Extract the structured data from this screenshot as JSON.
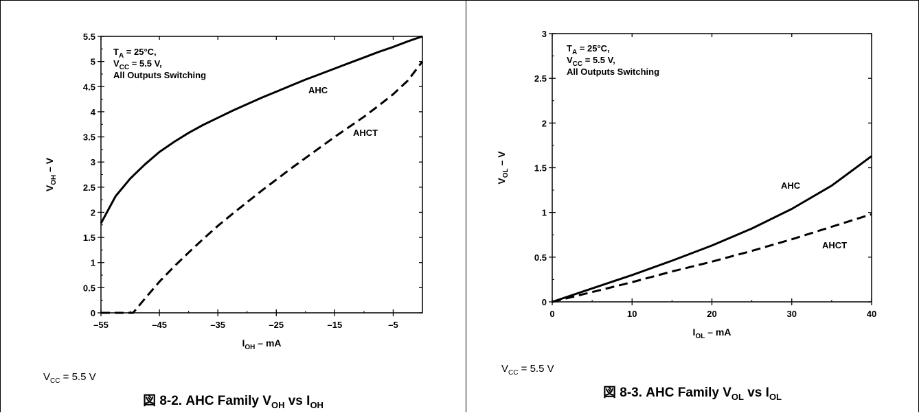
{
  "chart_data": [
    {
      "type": "line",
      "title": "",
      "xlabel_main": "I",
      "xlabel_sub": "OH",
      "xlabel_rest": " – mA",
      "ylabel_main": "V",
      "ylabel_sub": "OH",
      "ylabel_rest": " – V",
      "xlim": [
        -55,
        0
      ],
      "ylim": [
        0,
        5.5
      ],
      "xticks": [
        -55,
        -45,
        -35,
        -25,
        -15,
        -5
      ],
      "xtick_labels": [
        "–55",
        "–45",
        "–35",
        "–25",
        "–15",
        "–5"
      ],
      "yticks": [
        0,
        0.5,
        1,
        1.5,
        2,
        2.5,
        3,
        3.5,
        4,
        4.5,
        5,
        5.5
      ],
      "ytick_labels": [
        "0",
        "0.5",
        "1",
        "1.5",
        "2",
        "2.5",
        "3",
        "3.5",
        "4",
        "4.5",
        "5",
        "5.5"
      ],
      "annotation": [
        {
          "main": "T",
          "sub": "A",
          "rest": " = 25°C,"
        },
        {
          "main": "V",
          "sub": "CC",
          "rest": " = 5.5 V,"
        },
        {
          "main": "All Outputs Switching",
          "sub": "",
          "rest": ""
        }
      ],
      "series": [
        {
          "name": "AHC",
          "style": "solid",
          "x": [
            -55,
            -52.5,
            -50,
            -47.5,
            -45,
            -42.5,
            -40,
            -37.5,
            -35,
            -32.5,
            -30,
            -27.5,
            -25,
            -22.5,
            -20,
            -17.5,
            -15,
            -12.5,
            -10,
            -7.5,
            -5,
            -2.5,
            0
          ],
          "y": [
            1.78,
            2.32,
            2.67,
            2.95,
            3.2,
            3.4,
            3.58,
            3.74,
            3.88,
            4.02,
            4.15,
            4.28,
            4.4,
            4.52,
            4.64,
            4.75,
            4.86,
            4.97,
            5.08,
            5.19,
            5.29,
            5.4,
            5.5
          ]
        },
        {
          "name": "AHCT",
          "style": "dashed",
          "x": [
            -55,
            -51,
            -49.5,
            -47.5,
            -45,
            -42.5,
            -40,
            -37.5,
            -35,
            -32.5,
            -30,
            -27.5,
            -25,
            -22.5,
            -20,
            -17.5,
            -15,
            -12.5,
            -10,
            -7.5,
            -5,
            -2.5,
            0
          ],
          "y": [
            0,
            0,
            0,
            0.28,
            0.62,
            0.92,
            1.2,
            1.47,
            1.73,
            1.97,
            2.2,
            2.43,
            2.65,
            2.87,
            3.08,
            3.29,
            3.5,
            3.7,
            3.9,
            4.12,
            4.35,
            4.62,
            5.0
          ]
        }
      ],
      "note": {
        "main": "V",
        "sub": "CC",
        "rest": " = 5.5 V"
      },
      "caption": {
        "prefix": "図 8-2. AHC Family V",
        "sub1": "OH",
        "mid": " vs I",
        "sub2": "OH"
      }
    },
    {
      "type": "line",
      "title": "",
      "xlabel_main": "I",
      "xlabel_sub": "OL",
      "xlabel_rest": " – mA",
      "ylabel_main": "V",
      "ylabel_sub": "OL",
      "ylabel_rest": " – V",
      "xlim": [
        0,
        40
      ],
      "ylim": [
        0,
        3
      ],
      "xticks": [
        0,
        10,
        20,
        30,
        40
      ],
      "xtick_labels": [
        "0",
        "10",
        "20",
        "30",
        "40"
      ],
      "yticks": [
        0,
        0.5,
        1,
        1.5,
        2,
        2.5,
        3
      ],
      "ytick_labels": [
        "0",
        "0.5",
        "1",
        "1.5",
        "2",
        "2.5",
        "3"
      ],
      "annotation": [
        {
          "main": "T",
          "sub": "A",
          "rest": " = 25°C,"
        },
        {
          "main": "V",
          "sub": "CC",
          "rest": " = 5.5 V,"
        },
        {
          "main": "All Outputs Switching",
          "sub": "",
          "rest": ""
        }
      ],
      "series": [
        {
          "name": "AHC",
          "style": "solid",
          "x": [
            0,
            5,
            10,
            15,
            20,
            25,
            30,
            35,
            40
          ],
          "y": [
            0,
            0.15,
            0.3,
            0.46,
            0.63,
            0.82,
            1.04,
            1.3,
            1.63
          ]
        },
        {
          "name": "AHCT",
          "style": "dashed",
          "x": [
            0,
            5,
            10,
            15,
            20,
            25,
            30,
            35,
            40
          ],
          "y": [
            0,
            0.11,
            0.22,
            0.34,
            0.45,
            0.57,
            0.7,
            0.84,
            0.98
          ]
        }
      ],
      "note": {
        "main": "V",
        "sub": "CC",
        "rest": " = 5.5 V"
      },
      "caption": {
        "prefix": "図 8-3. AHC Family V",
        "sub1": "OL",
        "mid": " vs I",
        "sub2": "OL"
      }
    }
  ]
}
